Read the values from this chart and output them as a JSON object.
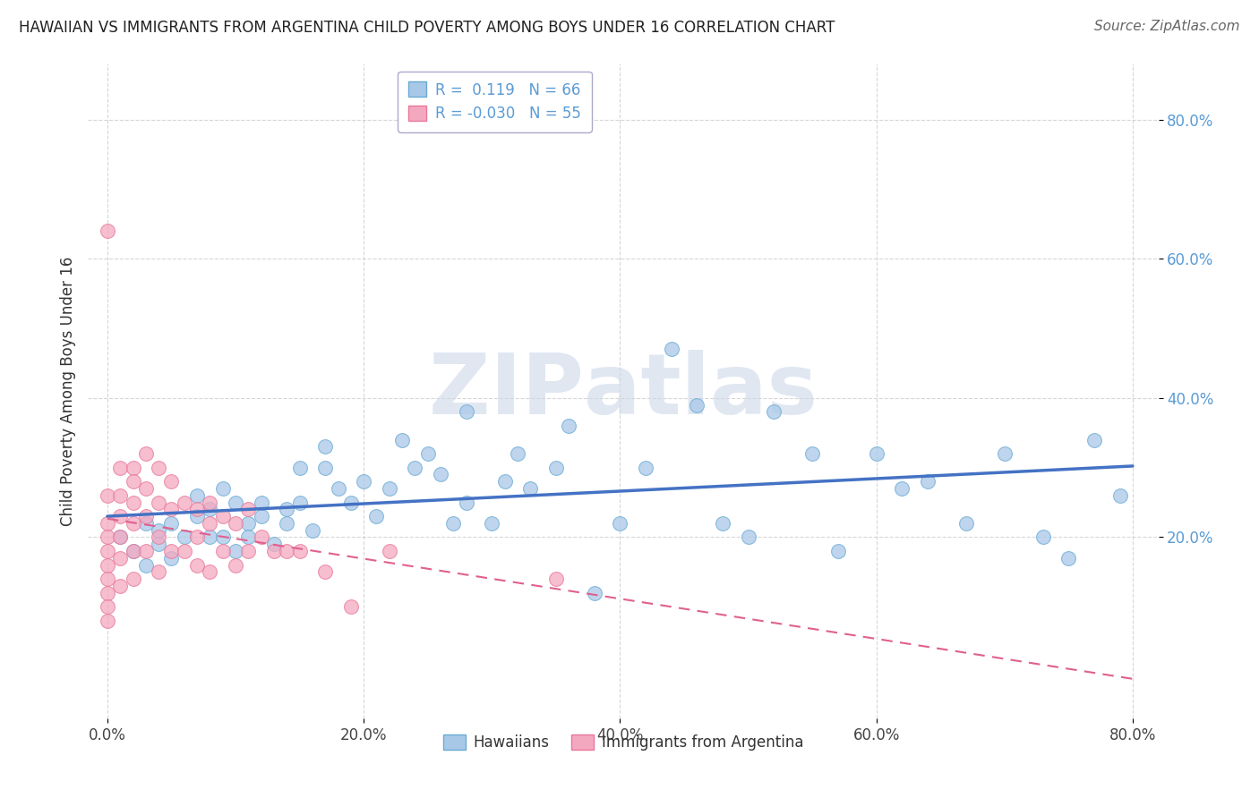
{
  "title": "HAWAIIAN VS IMMIGRANTS FROM ARGENTINA CHILD POVERTY AMONG BOYS UNDER 16 CORRELATION CHART",
  "source": "Source: ZipAtlas.com",
  "ylabel": "Child Poverty Among Boys Under 16",
  "xlabel": "",
  "legend_hawaiians": "Hawaiians",
  "legend_argentina": "Immigrants from Argentina",
  "r_hawaiians": 0.119,
  "n_hawaiians": 66,
  "r_argentina": -0.03,
  "n_argentina": 55,
  "xlim": [
    -0.01,
    0.82
  ],
  "ylim": [
    -0.05,
    0.85
  ],
  "xticks": [
    0.0,
    0.2,
    0.4,
    0.6,
    0.8
  ],
  "yticks": [
    0.2,
    0.4,
    0.6,
    0.8
  ],
  "color_hawaiians": "#a8c8e8",
  "color_argentina": "#f4a8c0",
  "edge_color_hawaiians": "#6aaad4",
  "edge_color_argentina": "#e8789a",
  "trend_color_hawaiians": "#4472c4",
  "trend_color_argentina": "#e06090",
  "watermark_color": "#ccd8e8",
  "hawaiians_x": [
    0.01,
    0.02,
    0.03,
    0.03,
    0.04,
    0.04,
    0.05,
    0.05,
    0.06,
    0.07,
    0.07,
    0.08,
    0.08,
    0.09,
    0.09,
    0.1,
    0.1,
    0.11,
    0.11,
    0.12,
    0.12,
    0.13,
    0.14,
    0.14,
    0.15,
    0.15,
    0.16,
    0.17,
    0.17,
    0.18,
    0.19,
    0.2,
    0.21,
    0.22,
    0.23,
    0.24,
    0.25,
    0.26,
    0.27,
    0.28,
    0.28,
    0.3,
    0.31,
    0.32,
    0.33,
    0.35,
    0.36,
    0.38,
    0.4,
    0.42,
    0.44,
    0.46,
    0.48,
    0.5,
    0.52,
    0.55,
    0.57,
    0.6,
    0.62,
    0.64,
    0.67,
    0.7,
    0.73,
    0.75,
    0.77,
    0.79
  ],
  "hawaiians_y": [
    0.2,
    0.18,
    0.22,
    0.16,
    0.19,
    0.21,
    0.17,
    0.22,
    0.2,
    0.26,
    0.23,
    0.24,
    0.2,
    0.27,
    0.2,
    0.18,
    0.25,
    0.22,
    0.2,
    0.23,
    0.25,
    0.19,
    0.24,
    0.22,
    0.3,
    0.25,
    0.21,
    0.33,
    0.3,
    0.27,
    0.25,
    0.28,
    0.23,
    0.27,
    0.34,
    0.3,
    0.32,
    0.29,
    0.22,
    0.38,
    0.25,
    0.22,
    0.28,
    0.32,
    0.27,
    0.3,
    0.36,
    0.12,
    0.22,
    0.3,
    0.47,
    0.39,
    0.22,
    0.2,
    0.38,
    0.32,
    0.18,
    0.32,
    0.27,
    0.28,
    0.22,
    0.32,
    0.2,
    0.17,
    0.34,
    0.26
  ],
  "argentina_x": [
    0.0,
    0.0,
    0.0,
    0.0,
    0.0,
    0.0,
    0.0,
    0.0,
    0.0,
    0.0,
    0.01,
    0.01,
    0.01,
    0.01,
    0.01,
    0.01,
    0.02,
    0.02,
    0.02,
    0.02,
    0.02,
    0.02,
    0.03,
    0.03,
    0.03,
    0.03,
    0.04,
    0.04,
    0.04,
    0.04,
    0.05,
    0.05,
    0.05,
    0.06,
    0.06,
    0.07,
    0.07,
    0.07,
    0.08,
    0.08,
    0.08,
    0.09,
    0.09,
    0.1,
    0.1,
    0.11,
    0.11,
    0.12,
    0.13,
    0.14,
    0.15,
    0.17,
    0.19,
    0.22,
    0.35
  ],
  "argentina_y": [
    0.64,
    0.26,
    0.22,
    0.2,
    0.18,
    0.16,
    0.14,
    0.12,
    0.1,
    0.08,
    0.3,
    0.26,
    0.23,
    0.2,
    0.17,
    0.13,
    0.3,
    0.28,
    0.25,
    0.22,
    0.18,
    0.14,
    0.32,
    0.27,
    0.23,
    0.18,
    0.3,
    0.25,
    0.2,
    0.15,
    0.28,
    0.24,
    0.18,
    0.25,
    0.18,
    0.24,
    0.2,
    0.16,
    0.25,
    0.22,
    0.15,
    0.23,
    0.18,
    0.22,
    0.16,
    0.24,
    0.18,
    0.2,
    0.18,
    0.18,
    0.18,
    0.15,
    0.1,
    0.18,
    0.14
  ]
}
